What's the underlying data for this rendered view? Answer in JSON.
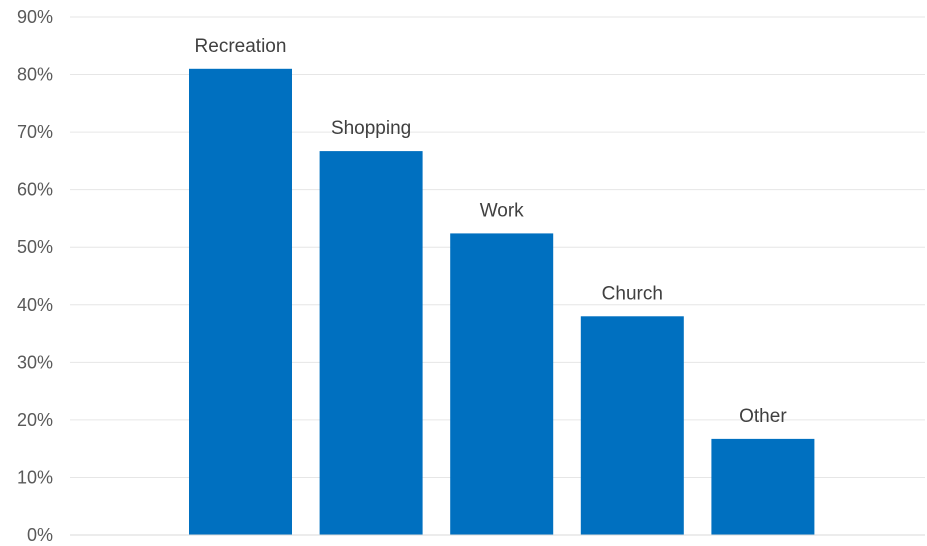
{
  "chart_data": {
    "type": "bar",
    "title": "",
    "xlabel": "",
    "ylabel": "",
    "categories": [
      "Recreation",
      "Shopping",
      "Work",
      "Church",
      "Other"
    ],
    "values": [
      81,
      66.7,
      52.4,
      38,
      16.7
    ],
    "ylim": [
      0,
      90
    ],
    "y_ticks": [
      0,
      10,
      20,
      30,
      40,
      50,
      60,
      70,
      80,
      90
    ],
    "y_tick_labels": [
      "0%",
      "10%",
      "20%",
      "30%",
      "40%",
      "50%",
      "60%",
      "70%",
      "80%",
      "90%"
    ],
    "grid": true,
    "legend": "none",
    "data_labels": "category names above bars",
    "bar_color": "#0070C0",
    "gridline_color": "#E6E6E6",
    "text_color": "#595959"
  }
}
